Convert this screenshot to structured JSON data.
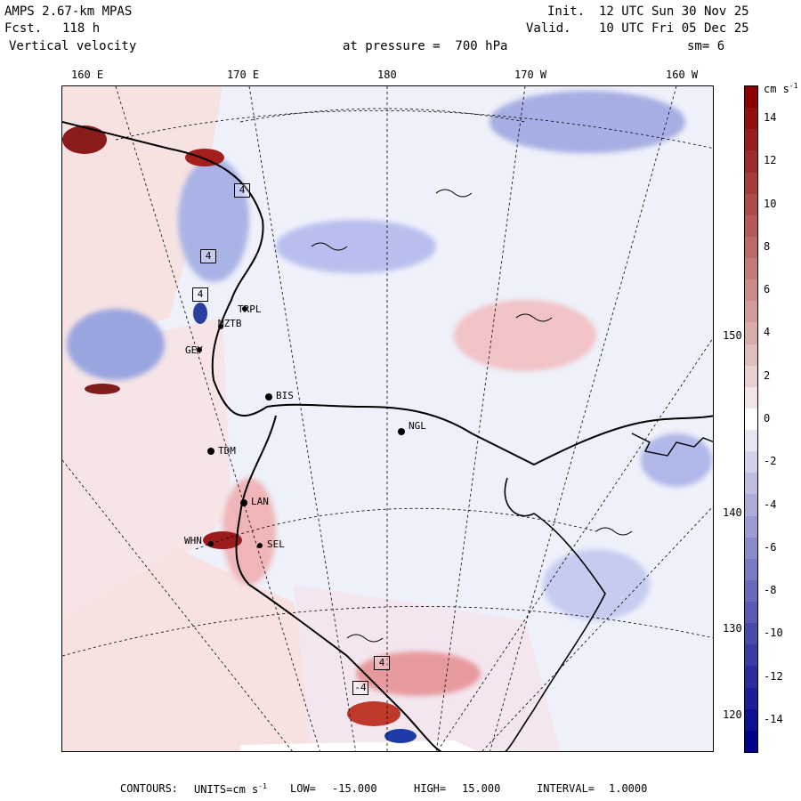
{
  "header": {
    "model": "AMPS 2.67-km MPAS",
    "forecast_label": "Fcst.",
    "forecast_value": "118 h",
    "field": "Vertical velocity",
    "init_label": "Init.",
    "init_value": "12 UTC Sun 30 Nov 25",
    "valid_label": "Valid.",
    "valid_value": "10 UTC Fri 05 Dec 25",
    "level_text": "at pressure =  700 hPa",
    "smoothing": "sm= 6"
  },
  "top_ticks": [
    "160 E",
    "170 E",
    "180",
    "170 W",
    "160 W"
  ],
  "right_ticks": [
    "150 W",
    "140 W",
    "130 W",
    "120 W"
  ],
  "stations": [
    {
      "name": "BIS"
    },
    {
      "name": "NGL"
    },
    {
      "name": "TDM"
    },
    {
      "name": "LAN"
    },
    {
      "name": "WHN"
    },
    {
      "name": "SEL"
    },
    {
      "name": "MZTB"
    },
    {
      "name": "GEY"
    },
    {
      "name": "TRPL"
    }
  ],
  "contour_marks": [
    "4",
    "4",
    "4",
    "-4",
    "4"
  ],
  "colorbar": {
    "units_label": "cm s",
    "units_exponent": "-1",
    "labels": [
      "14",
      "12",
      "10",
      "8",
      "6",
      "4",
      "2",
      "0",
      "-2",
      "-4",
      "-6",
      "-8",
      "-10",
      "-12",
      "-14"
    ],
    "levels": [
      15,
      14,
      13,
      12,
      11,
      10,
      9,
      8,
      7,
      6,
      5,
      4,
      3,
      2,
      1,
      0,
      -1,
      -2,
      -3,
      -4,
      -5,
      -6,
      -7,
      -8,
      -9,
      -10,
      -11,
      -12,
      -13,
      -14,
      -15
    ],
    "positive_color": "#8b0000",
    "negative_color": "#00008b",
    "zero_color": "#ffffff"
  },
  "footer": {
    "contours_label": "CONTOURS:",
    "units_label": "UNITS=cm s",
    "units_exponent": "-1",
    "low_label": "LOW=",
    "low_value": "-15.000",
    "high_label": "HIGH=",
    "high_value": "15.000",
    "interval_label": "INTERVAL=",
    "interval_value": "1.0000"
  }
}
